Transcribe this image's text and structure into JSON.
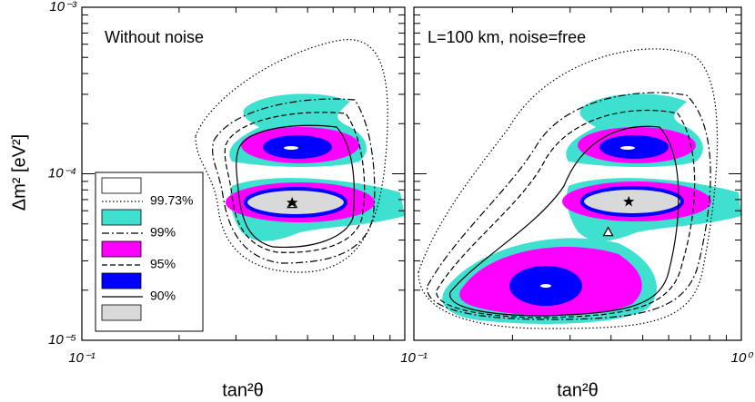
{
  "chart_data": [
    {
      "type": "contour",
      "annotation": "Without noise",
      "xlabel": "tan²θ",
      "ylabel": "Δm² [eV²]",
      "log_x": true,
      "log_y": true,
      "xlim": [
        0.1,
        1
      ],
      "ylim": [
        1e-05,
        0.001
      ],
      "xticks": [
        {
          "value": 0.1,
          "label": "10⁻¹"
        }
      ],
      "yticks": [
        {
          "value": 1e-05,
          "label": "10⁻⁵"
        },
        {
          "value": 0.0001,
          "label": "10⁻⁴"
        },
        {
          "value": 0.001,
          "label": "10⁻³"
        }
      ],
      "x_minor_ticks": [
        0.2,
        0.3,
        0.4,
        0.5,
        0.6,
        0.7,
        0.8,
        0.9
      ],
      "y_minor_ticks": [
        2e-05,
        3e-05,
        4e-05,
        5e-05,
        6e-05,
        7e-05,
        8e-05,
        9e-05,
        0.0002,
        0.0003,
        0.0004,
        0.0005,
        0.0006,
        0.0007,
        0.0008,
        0.0009
      ],
      "markers": [
        {
          "symbol": "triangle",
          "x": 0.448,
          "y": 6.6e-05
        },
        {
          "symbol": "star",
          "x": 0.448,
          "y": 6.7e-05
        }
      ],
      "legend": {
        "swatches": [
          "#ffffff",
          "#40e0d0",
          "#ff00ff",
          "#0000ff",
          "#d9d9d9"
        ],
        "entries": [
          {
            "label": "99.73%",
            "dash": "1.5 2.5"
          },
          {
            "label": "99%",
            "dash": "8 3 2 3"
          },
          {
            "label": "95%",
            "dash": "6 3"
          },
          {
            "label": "90%",
            "dash": "none"
          }
        ]
      }
    },
    {
      "type": "contour",
      "annotation": "L=100 km, noise=free",
      "xlabel": "tan²θ",
      "log_x": true,
      "log_y": true,
      "xlim": [
        0.1,
        1
      ],
      "ylim": [
        1e-05,
        0.001
      ],
      "xticks": [
        {
          "value": 0.1,
          "label": "10⁻¹"
        },
        {
          "value": 1,
          "label": "10⁰"
        }
      ],
      "yticks": [
        1e-05,
        0.0001,
        0.001
      ],
      "x_minor_ticks": [
        0.2,
        0.3,
        0.4,
        0.5,
        0.6,
        0.7,
        0.8,
        0.9
      ],
      "y_minor_ticks": [
        2e-05,
        3e-05,
        4e-05,
        5e-05,
        6e-05,
        7e-05,
        8e-05,
        9e-05,
        0.0002,
        0.0003,
        0.0004,
        0.0005,
        0.0006,
        0.0007,
        0.0008,
        0.0009
      ],
      "markers": [
        {
          "symbol": "triangle",
          "x": 0.392,
          "y": 4.47e-05
        },
        {
          "symbol": "star",
          "x": 0.453,
          "y": 6.8e-05
        }
      ]
    }
  ]
}
